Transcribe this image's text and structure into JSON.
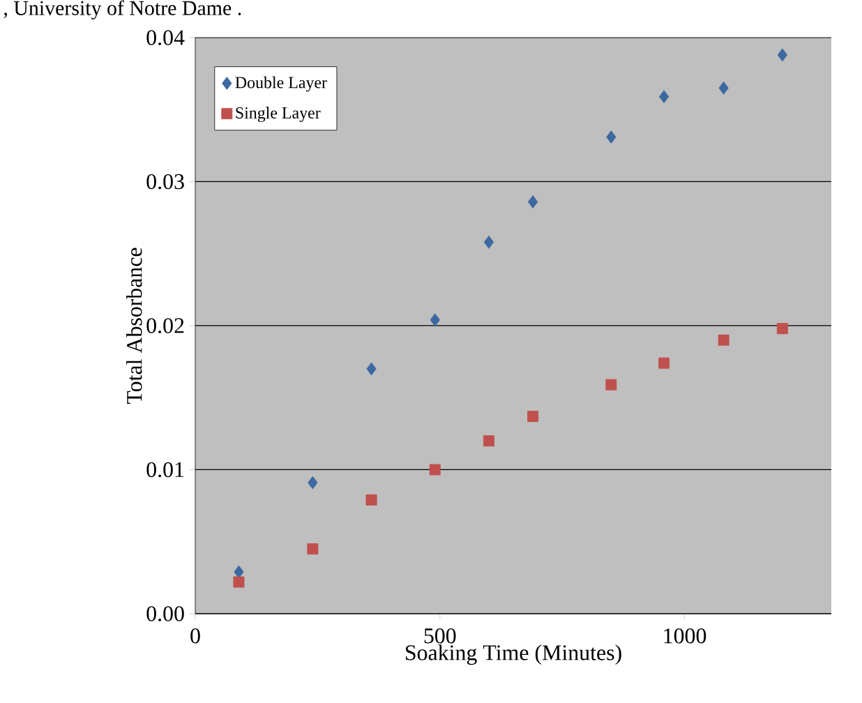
{
  "chart_data": {
    "type": "scatter",
    "xlabel": "Soaking Time (Minutes)",
    "ylabel": "Total Absorbance",
    "annotations": [
      ", University of Notre Dame ."
    ],
    "xlim": [
      0,
      1300
    ],
    "xticks": [
      0,
      500,
      1000
    ],
    "ylim": [
      0,
      0.04
    ],
    "yticks": [
      {
        "value": 0,
        "label": "0.00"
      },
      0.01,
      0.02,
      0.03,
      0.04
    ],
    "grid": "y",
    "legend": "top left",
    "series": [
      {
        "name": "Double Layer",
        "color": "#3d68a0",
        "marker": "diamond",
        "x": [
          89,
          240,
          360,
          490,
          600,
          690,
          850,
          958,
          1080,
          1200
        ],
        "values": [
          0.0029,
          0.0091,
          0.017,
          0.0204,
          0.0258,
          0.0286,
          0.0331,
          0.0359,
          0.0365,
          0.0388
        ]
      },
      {
        "name": "Single Layer",
        "color": "#c0504d",
        "marker": "square",
        "x": [
          89,
          240,
          360,
          490,
          600,
          690,
          850,
          958,
          1080,
          1200
        ],
        "values": [
          0.0022,
          0.0045,
          0.0079,
          0.01,
          0.012,
          0.0137,
          0.0159,
          0.0174,
          0.019,
          0.0198
        ]
      }
    ]
  }
}
